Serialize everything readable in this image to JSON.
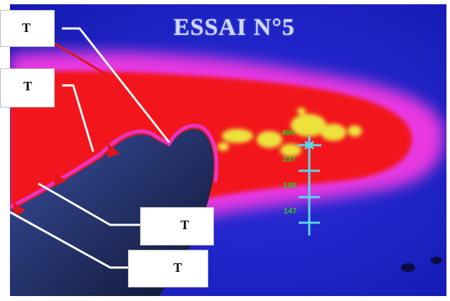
{
  "title": "ESSAI N°5",
  "labels": [
    "T",
    "T",
    "T",
    "T"
  ],
  "scale_ticks": [
    "400",
    "237",
    "190",
    "147"
  ],
  "colors": {
    "background": "#1a22c8",
    "hot_zone": "#f2171f",
    "halo": "#e838e0",
    "core": "#ece23a",
    "scale": "#5fd6ea",
    "tick_text": "#28d020",
    "arrow": "#e0151a",
    "leader_line": "#ffffff"
  }
}
